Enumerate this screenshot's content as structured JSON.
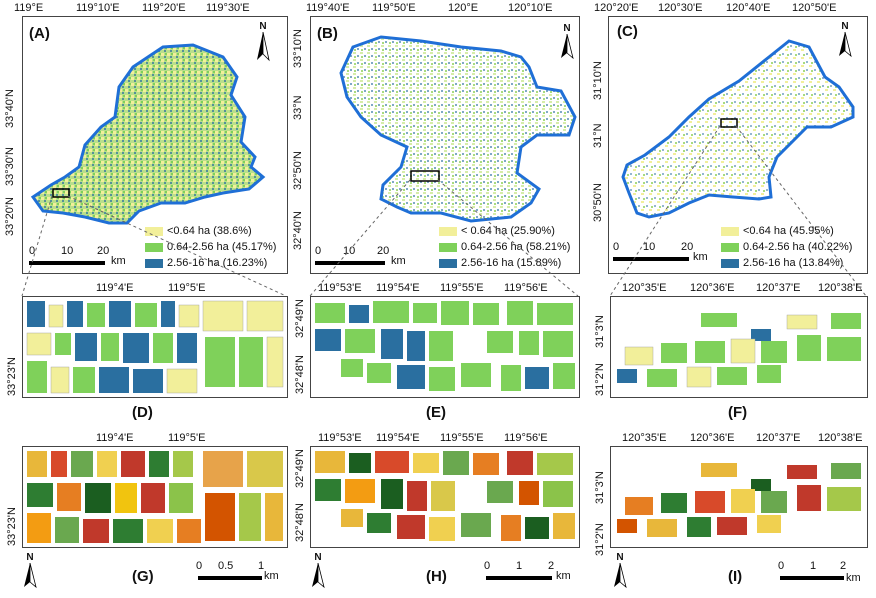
{
  "colors": {
    "small": "#f2ef9a",
    "medium": "#7fd15a",
    "large": "#2a6fa0",
    "boundary": "#1f6fd6",
    "scalebar": "#000000"
  },
  "panels": {
    "A": {
      "label": "(A)",
      "top": [
        "119°E",
        "119°10'E",
        "119°20'E",
        "119°30'E"
      ],
      "left": [
        "33°40'N",
        "33°30'N",
        "33°20'N"
      ],
      "legend": [
        "<0.64 ha (38.6%)",
        "0.64-2.56 ha (45.17%)",
        "2.56-16 ha (16.23%)"
      ],
      "scale": [
        "0",
        "10",
        "20"
      ],
      "unit": "km",
      "north": "N"
    },
    "B": {
      "label": "(B)",
      "top": [
        "119°40'E",
        "119°50'E",
        "120°E",
        "120°10'E"
      ],
      "left": [
        "33°10'N",
        "33°N",
        "32°50'N",
        "32°40'N"
      ],
      "legend": [
        "< 0.64 ha (25.90%)",
        "0.64-2.56 ha (58.21%)",
        "2.56-16 ha (15.89%)"
      ],
      "scale": [
        "0",
        "10",
        "20"
      ],
      "unit": "km",
      "north": "N"
    },
    "C": {
      "label": "(C)",
      "top": [
        "120°20'E",
        "120°30'E",
        "120°40'E",
        "120°50'E"
      ],
      "left": [
        "31°10'N",
        "31°N",
        "30°50'N"
      ],
      "legend": [
        "<0.64 ha (45.95%)",
        "0.64-2.56 ha (40.22%)",
        "2.56-16 ha (13.84%)"
      ],
      "scale": [
        "0",
        "10",
        "20"
      ],
      "unit": "km",
      "north": "N"
    },
    "D": {
      "label": "(D)",
      "top": [
        "119°4'E",
        "119°5'E"
      ],
      "left": [
        "33°23'N"
      ]
    },
    "E": {
      "label": "(E)",
      "top": [
        "119°53'E",
        "119°54'E",
        "119°55'E",
        "119°56'E"
      ],
      "left": [
        "32°49'N",
        "32°48'N"
      ]
    },
    "F": {
      "label": "(F)",
      "top": [
        "120°35'E",
        "120°36'E",
        "120°37'E",
        "120°38'E"
      ],
      "left": [
        "31°3'N",
        "31°2'N"
      ]
    },
    "G": {
      "label": "(G)",
      "top": [
        "119°4'E",
        "119°5'E"
      ],
      "left": [
        "33°23'N"
      ],
      "scale": [
        "0",
        "0.5",
        "1"
      ],
      "unit": "km",
      "north": "N"
    },
    "H": {
      "label": "(H)",
      "top": [
        "119°53'E",
        "119°54'E",
        "119°55'E",
        "119°56'E"
      ],
      "left": [
        "32°49'N",
        "32°48'N"
      ],
      "scale": [
        "0",
        "1",
        "2"
      ],
      "unit": "km",
      "north": "N"
    },
    "I": {
      "label": "(I)",
      "top": [
        "120°35'E",
        "120°36'E",
        "120°37'E",
        "120°38'E"
      ],
      "left": [
        "31°3'N",
        "31°2'N"
      ],
      "scale": [
        "0",
        "1",
        "2"
      ],
      "unit": "km",
      "north": "N"
    }
  }
}
